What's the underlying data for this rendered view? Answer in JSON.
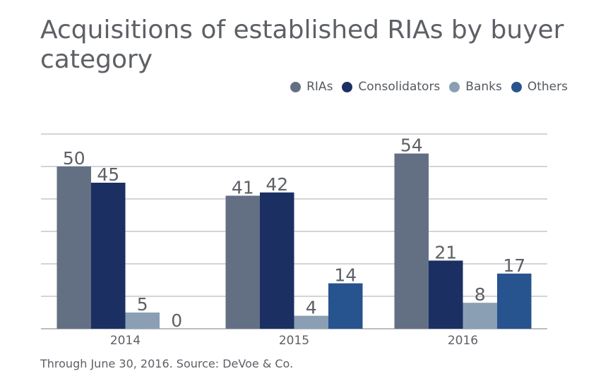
{
  "chart_data": {
    "type": "bar",
    "title": "Acquisitions of established RIAs by buyer category",
    "categories": [
      "2014",
      "2015",
      "2016"
    ],
    "series": [
      {
        "name": "RIAs",
        "color": "#637084",
        "values": [
          50,
          41,
          54
        ]
      },
      {
        "name": "Consolidators",
        "color": "#1b2f63",
        "values": [
          45,
          42,
          21
        ]
      },
      {
        "name": "Banks",
        "color": "#8a9fb3",
        "values": [
          5,
          4,
          8
        ]
      },
      {
        "name": "Others",
        "color": "#27538f",
        "values": [
          0,
          14,
          17
        ]
      }
    ],
    "ylim": [
      0,
      60
    ],
    "grid": true,
    "legend_position": "top-right",
    "source": "Through June 30, 2016. Source: DeVoe & Co."
  }
}
